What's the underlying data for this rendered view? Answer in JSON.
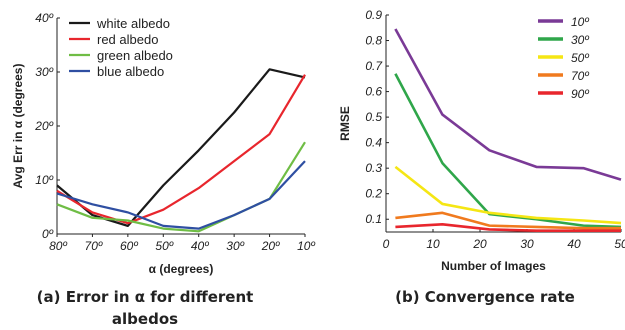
{
  "chart_data": [
    {
      "type": "line",
      "panel": "a",
      "caption_line1": "(a) Error in α for different",
      "caption_line2": "albedos",
      "xlabel": "α (degrees)",
      "ylabel": "Avg Err in  α (degrees)",
      "x_reversed": true,
      "xlim": [
        80,
        10
      ],
      "ylim": [
        0,
        40
      ],
      "xticks": [
        "80º",
        "70º",
        "60º",
        "50º",
        "40º",
        "30º",
        "20º",
        "10º"
      ],
      "yticks": [
        "0º",
        "10º",
        "20º",
        "30º",
        "40º"
      ],
      "legend_position": "top-left",
      "x": [
        80,
        70,
        60,
        50,
        40,
        30,
        20,
        10
      ],
      "series": [
        {
          "name": "white albedo",
          "color": "#1a1a1a",
          "values": [
            9,
            3.5,
            1.5,
            9,
            15.5,
            22.5,
            30.5,
            29
          ]
        },
        {
          "name": "red albedo",
          "color": "#e8262d",
          "values": [
            8,
            4,
            2,
            4.5,
            8.5,
            13.5,
            18.5,
            29.5
          ]
        },
        {
          "name": "green albedo",
          "color": "#6fbd45",
          "values": [
            5.5,
            3,
            2.5,
            1,
            0.5,
            3.5,
            6.5,
            17
          ]
        },
        {
          "name": "blue albedo",
          "color": "#2f4fa2",
          "values": [
            7.5,
            5.5,
            4,
            1.5,
            1,
            3.5,
            6.5,
            13.5
          ]
        }
      ]
    },
    {
      "type": "line",
      "panel": "b",
      "caption": "(b) Convergence rate",
      "xlabel": "Number of Images",
      "ylabel": "RMSE",
      "xlim": [
        0,
        50
      ],
      "ylim": [
        0.05,
        0.9
      ],
      "xticks": [
        "0",
        "10",
        "20",
        "30",
        "40",
        "50"
      ],
      "yticks": [
        "0.1",
        "0.2",
        "0.3",
        "0.4",
        "0.5",
        "0.6",
        "0.7",
        "0.8",
        "0.9"
      ],
      "legend_position": "top-right",
      "x": [
        2,
        12,
        22,
        32,
        42,
        50
      ],
      "series": [
        {
          "name": "10º",
          "color": "#7a3a96",
          "values": [
            0.845,
            0.51,
            0.37,
            0.305,
            0.3,
            0.255
          ]
        },
        {
          "name": "30º",
          "color": "#2fa64a",
          "values": [
            0.67,
            0.32,
            0.12,
            0.1,
            0.075,
            0.07
          ]
        },
        {
          "name": "50º",
          "color": "#f5e614",
          "values": [
            0.305,
            0.16,
            0.125,
            0.105,
            0.095,
            0.085
          ]
        },
        {
          "name": "70º",
          "color": "#f07a1e",
          "values": [
            0.105,
            0.125,
            0.075,
            0.07,
            0.065,
            0.065
          ]
        },
        {
          "name": "90º",
          "color": "#e8262d",
          "values": [
            0.07,
            0.08,
            0.06,
            0.055,
            0.055,
            0.055
          ]
        }
      ]
    }
  ]
}
